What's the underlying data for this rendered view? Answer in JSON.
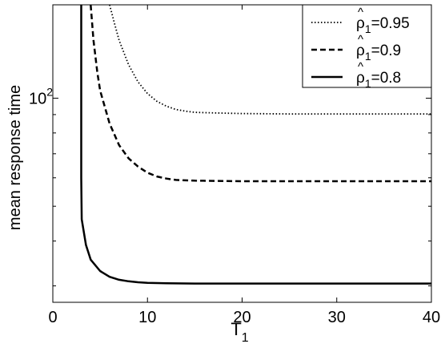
{
  "chart_data": {
    "type": "line",
    "xlabel": "T",
    "xlabel_sub": "1",
    "ylabel": "mean response time",
    "xlim": [
      0,
      40
    ],
    "ylim": [
      27,
      182
    ],
    "yscale": "log",
    "grid": false,
    "legend_position": "top-right",
    "x_ticks": [
      0,
      10,
      20,
      30,
      40
    ],
    "x_tick_labels": [
      "0",
      "10",
      "20",
      "30",
      "40"
    ],
    "y_ticks": [
      30,
      40,
      50,
      60,
      70,
      80,
      90,
      100
    ],
    "y_tick_labels": [
      {
        "base": "10",
        "exp": "2",
        "value": 100
      }
    ],
    "series": [
      {
        "name": "0.95",
        "legend_prefix": "ρ",
        "legend_sub": "1",
        "legend_hat": "^",
        "legend_eq": "=",
        "style": "dotted",
        "x": [
          6.0,
          6.5,
          7,
          8,
          9,
          10,
          11,
          12,
          13,
          14,
          15,
          17,
          20,
          25,
          30,
          35,
          40
        ],
        "y": [
          182,
          162,
          145,
          124,
          111,
          103,
          98,
          95,
          93,
          92,
          91.3,
          91,
          90.6,
          90.4,
          90.4,
          90.4,
          90.4
        ]
      },
      {
        "name": "0.9",
        "legend_prefix": "ρ",
        "legend_sub": "1",
        "legend_hat": "^",
        "legend_eq": "=",
        "style": "dashed",
        "x": [
          4.0,
          4.3,
          4.7,
          5,
          6,
          7,
          8,
          9,
          10,
          11,
          12,
          13,
          15,
          20,
          25,
          30,
          35,
          40
        ],
        "y": [
          182,
          145,
          118,
          105,
          85,
          74,
          68,
          64.5,
          62,
          60.5,
          59.7,
          59.2,
          58.9,
          58.7,
          58.7,
          58.7,
          58.7,
          58.7
        ]
      },
      {
        "name": "0.8",
        "legend_prefix": "ρ",
        "legend_sub": "1",
        "legend_hat": "^",
        "legend_eq": "=",
        "style": "solid",
        "x": [
          3.0,
          3.0,
          3.0,
          3.05,
          3.5,
          4,
          5,
          6,
          7,
          8,
          9,
          10,
          12,
          15,
          20,
          25,
          30,
          40
        ],
        "y": [
          182,
          110,
          60,
          46,
          39,
          35.5,
          33,
          31.8,
          31.2,
          30.9,
          30.7,
          30.6,
          30.5,
          30.45,
          30.45,
          30.45,
          30.45,
          30.45
        ]
      }
    ]
  }
}
